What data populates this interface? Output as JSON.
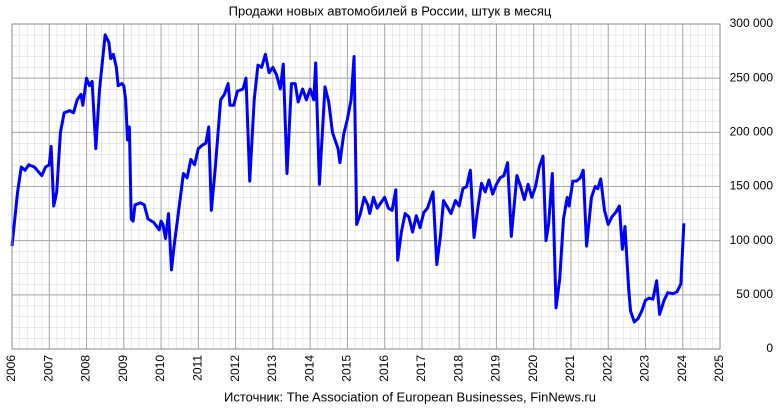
{
  "chart_data": {
    "type": "line",
    "title": "Продажи новых автомобилей в России, штук в месяц",
    "source": "Источник: The Association of European Businesses, FinNews.ru",
    "color": "#0000ff",
    "grid": true,
    "xlim": [
      2006,
      2025
    ],
    "xticks": [
      2006,
      2007,
      2008,
      2009,
      2010,
      2011,
      2012,
      2013,
      2014,
      2015,
      2016,
      2017,
      2018,
      2019,
      2020,
      2021,
      2022,
      2023,
      2024,
      2025
    ],
    "ylim": [
      0,
      300000
    ],
    "yticks": [
      {
        "value": 0,
        "label": "0"
      },
      {
        "value": 50000,
        "label": "50 000"
      },
      {
        "value": 100000,
        "label": "100 000"
      },
      {
        "value": 150000,
        "label": "150 000"
      },
      {
        "value": 200000,
        "label": "200 000"
      },
      {
        "value": 250000,
        "label": "250 000"
      },
      {
        "value": 300000,
        "label": "300 000"
      }
    ],
    "x": [
      2006.0,
      2006.15,
      2006.25,
      2006.35,
      2006.45,
      2006.6,
      2006.8,
      2006.9,
      2007.0,
      2007.05,
      2007.12,
      2007.2,
      2007.3,
      2007.4,
      2007.55,
      2007.65,
      2007.75,
      2007.85,
      2007.9,
      2008.0,
      2008.08,
      2008.15,
      2008.25,
      2008.35,
      2008.5,
      2008.6,
      2008.65,
      2008.72,
      2008.8,
      2008.85,
      2008.95,
      2009.0,
      2009.05,
      2009.1,
      2009.15,
      2009.2,
      2009.25,
      2009.3,
      2009.45,
      2009.55,
      2009.65,
      2009.8,
      2009.95,
      2010.0,
      2010.05,
      2010.12,
      2010.2,
      2010.28,
      2010.35,
      2010.5,
      2010.6,
      2010.7,
      2010.8,
      2010.9,
      2011.0,
      2011.1,
      2011.2,
      2011.28,
      2011.35,
      2011.45,
      2011.6,
      2011.7,
      2011.8,
      2011.85,
      2011.95,
      2012.05,
      2012.2,
      2012.28,
      2012.38,
      2012.5,
      2012.6,
      2012.7,
      2012.8,
      2012.9,
      2013.0,
      2013.1,
      2013.2,
      2013.28,
      2013.38,
      2013.5,
      2013.6,
      2013.68,
      2013.8,
      2013.9,
      2014.0,
      2014.1,
      2014.15,
      2014.25,
      2014.4,
      2014.5,
      2014.6,
      2014.75,
      2014.8,
      2014.9,
      2015.0,
      2015.1,
      2015.18,
      2015.25,
      2015.35,
      2015.45,
      2015.55,
      2015.6,
      2015.7,
      2015.8,
      2015.9,
      2016.0,
      2016.1,
      2016.2,
      2016.3,
      2016.35,
      2016.45,
      2016.55,
      2016.65,
      2016.75,
      2016.85,
      2016.95,
      2017.05,
      2017.15,
      2017.3,
      2017.4,
      2017.5,
      2017.58,
      2017.7,
      2017.78,
      2017.9,
      2018.0,
      2018.1,
      2018.2,
      2018.3,
      2018.4,
      2018.5,
      2018.6,
      2018.7,
      2018.8,
      2018.9,
      2019.0,
      2019.1,
      2019.2,
      2019.3,
      2019.4,
      2019.55,
      2019.65,
      2019.75,
      2019.85,
      2019.95,
      2020.05,
      2020.15,
      2020.25,
      2020.33,
      2020.4,
      2020.5,
      2020.6,
      2020.7,
      2020.8,
      2020.9,
      2020.95,
      2021.05,
      2021.15,
      2021.25,
      2021.33,
      2021.42,
      2021.55,
      2021.65,
      2021.72,
      2021.8,
      2021.9,
      2022.0,
      2022.1,
      2022.2,
      2022.3,
      2022.38,
      2022.45,
      2022.55,
      2022.6,
      2022.7,
      2022.8,
      2022.9,
      2023.0,
      2023.1,
      2023.2,
      2023.3,
      2023.38,
      2023.5,
      2023.6,
      2023.75,
      2023.85,
      2023.95,
      2024.03
    ],
    "values": [
      95000,
      145000,
      168000,
      165000,
      170000,
      168000,
      160000,
      168000,
      170000,
      187000,
      132000,
      145000,
      200000,
      218000,
      220000,
      218000,
      230000,
      235000,
      225000,
      250000,
      243000,
      247000,
      185000,
      240000,
      290000,
      283000,
      268000,
      272000,
      260000,
      243000,
      245000,
      243000,
      230000,
      193000,
      205000,
      120000,
      118000,
      133000,
      135000,
      133000,
      120000,
      117000,
      110000,
      118000,
      115000,
      102000,
      125000,
      73000,
      95000,
      135000,
      162000,
      158000,
      175000,
      170000,
      185000,
      188000,
      190000,
      205000,
      128000,
      165000,
      230000,
      235000,
      245000,
      225000,
      225000,
      238000,
      240000,
      250000,
      155000,
      230000,
      262000,
      260000,
      272000,
      255000,
      260000,
      253000,
      240000,
      263000,
      162000,
      245000,
      245000,
      228000,
      240000,
      230000,
      240000,
      230000,
      264000,
      152000,
      242000,
      228000,
      200000,
      185000,
      172000,
      198000,
      212000,
      230000,
      270000,
      115000,
      125000,
      140000,
      133000,
      125000,
      140000,
      130000,
      135000,
      140000,
      130000,
      128000,
      147000,
      82000,
      108000,
      125000,
      122000,
      108000,
      123000,
      112000,
      126000,
      130000,
      145000,
      78000,
      105000,
      137000,
      130000,
      125000,
      137000,
      132000,
      148000,
      150000,
      165000,
      103000,
      130000,
      153000,
      145000,
      156000,
      143000,
      152000,
      158000,
      160000,
      172000,
      104000,
      160000,
      150000,
      138000,
      152000,
      140000,
      150000,
      168000,
      178000,
      100000,
      115000,
      162000,
      38000,
      65000,
      120000,
      140000,
      132000,
      155000,
      155000,
      158000,
      165000,
      95000,
      140000,
      150000,
      148000,
      157000,
      128000,
      115000,
      122000,
      126000,
      132000,
      92000,
      113000,
      55000,
      35000,
      25000,
      28000,
      35000,
      45000,
      47000,
      46000,
      63000,
      32000,
      45000,
      52000,
      51000,
      53000,
      60000,
      116000
    ]
  }
}
